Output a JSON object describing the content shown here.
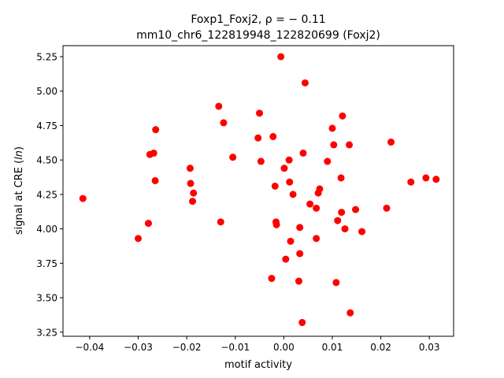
{
  "chart_data": {
    "type": "scatter",
    "title_line1": "Foxp1_Foxj2, ρ = − 0.11",
    "title_line2": "mm10_chr6_122819948_122820699 (Foxj2)",
    "xlabel": "motif activity",
    "ylabel_prefix": "signal at CRE (",
    "ylabel_italic": "ln",
    "ylabel_suffix": ")",
    "xlim": [
      -0.0455,
      0.035
    ],
    "ylim": [
      3.22,
      5.33
    ],
    "xticks": [
      -0.04,
      -0.03,
      -0.02,
      -0.01,
      0.0,
      0.01,
      0.02,
      0.03
    ],
    "xtick_labels": [
      "−0.04",
      "−0.03",
      "−0.02",
      "−0.01",
      "0.00",
      "0.01",
      "0.02",
      "0.03"
    ],
    "yticks": [
      3.25,
      3.5,
      3.75,
      4.0,
      4.25,
      4.5,
      4.75,
      5.0,
      5.25
    ],
    "ytick_labels": [
      "3.25",
      "3.50",
      "3.75",
      "4.00",
      "4.25",
      "4.50",
      "4.75",
      "5.00",
      "5.25"
    ],
    "marker_color": "#ff0000",
    "grid": false,
    "points": [
      {
        "x": -0.0414,
        "y": 4.22
      },
      {
        "x": -0.03,
        "y": 3.93
      },
      {
        "x": -0.0279,
        "y": 4.04
      },
      {
        "x": -0.0276,
        "y": 4.54
      },
      {
        "x": -0.0268,
        "y": 4.55
      },
      {
        "x": -0.0265,
        "y": 4.35
      },
      {
        "x": -0.0264,
        "y": 4.72
      },
      {
        "x": -0.0193,
        "y": 4.44
      },
      {
        "x": -0.0192,
        "y": 4.33
      },
      {
        "x": -0.0188,
        "y": 4.2
      },
      {
        "x": -0.0186,
        "y": 4.26
      },
      {
        "x": -0.0134,
        "y": 4.89
      },
      {
        "x": -0.013,
        "y": 4.05
      },
      {
        "x": -0.0124,
        "y": 4.77
      },
      {
        "x": -0.0105,
        "y": 4.52
      },
      {
        "x": -0.0053,
        "y": 4.66
      },
      {
        "x": -0.005,
        "y": 4.84
      },
      {
        "x": -0.0047,
        "y": 4.49
      },
      {
        "x": -0.0025,
        "y": 3.64
      },
      {
        "x": -0.0022,
        "y": 4.67
      },
      {
        "x": -0.0018,
        "y": 4.31
      },
      {
        "x": -0.0016,
        "y": 4.05
      },
      {
        "x": -0.0015,
        "y": 4.03
      },
      {
        "x": -0.0006,
        "y": 5.25
      },
      {
        "x": 0.0001,
        "y": 4.44
      },
      {
        "x": 0.0004,
        "y": 3.78
      },
      {
        "x": 0.0011,
        "y": 4.5
      },
      {
        "x": 0.0012,
        "y": 4.34
      },
      {
        "x": 0.0014,
        "y": 3.91
      },
      {
        "x": 0.0019,
        "y": 4.25
      },
      {
        "x": 0.0031,
        "y": 3.62
      },
      {
        "x": 0.0033,
        "y": 3.82
      },
      {
        "x": 0.0033,
        "y": 4.01
      },
      {
        "x": 0.0038,
        "y": 3.32
      },
      {
        "x": 0.004,
        "y": 4.55
      },
      {
        "x": 0.0044,
        "y": 5.06
      },
      {
        "x": 0.0054,
        "y": 4.18
      },
      {
        "x": 0.0067,
        "y": 4.15
      },
      {
        "x": 0.0067,
        "y": 3.93
      },
      {
        "x": 0.0071,
        "y": 4.26
      },
      {
        "x": 0.0074,
        "y": 4.29
      },
      {
        "x": 0.009,
        "y": 4.49
      },
      {
        "x": 0.01,
        "y": 4.73
      },
      {
        "x": 0.0103,
        "y": 4.61
      },
      {
        "x": 0.0108,
        "y": 3.61
      },
      {
        "x": 0.0111,
        "y": 4.06
      },
      {
        "x": 0.0118,
        "y": 4.37
      },
      {
        "x": 0.0119,
        "y": 4.12
      },
      {
        "x": 0.0121,
        "y": 4.82
      },
      {
        "x": 0.0126,
        "y": 4.0
      },
      {
        "x": 0.0135,
        "y": 4.61
      },
      {
        "x": 0.0137,
        "y": 3.39
      },
      {
        "x": 0.0148,
        "y": 4.14
      },
      {
        "x": 0.0161,
        "y": 3.98
      },
      {
        "x": 0.0212,
        "y": 4.15
      },
      {
        "x": 0.0221,
        "y": 4.63
      },
      {
        "x": 0.0262,
        "y": 4.34
      },
      {
        "x": 0.0293,
        "y": 4.37
      },
      {
        "x": 0.0314,
        "y": 4.36
      }
    ]
  }
}
